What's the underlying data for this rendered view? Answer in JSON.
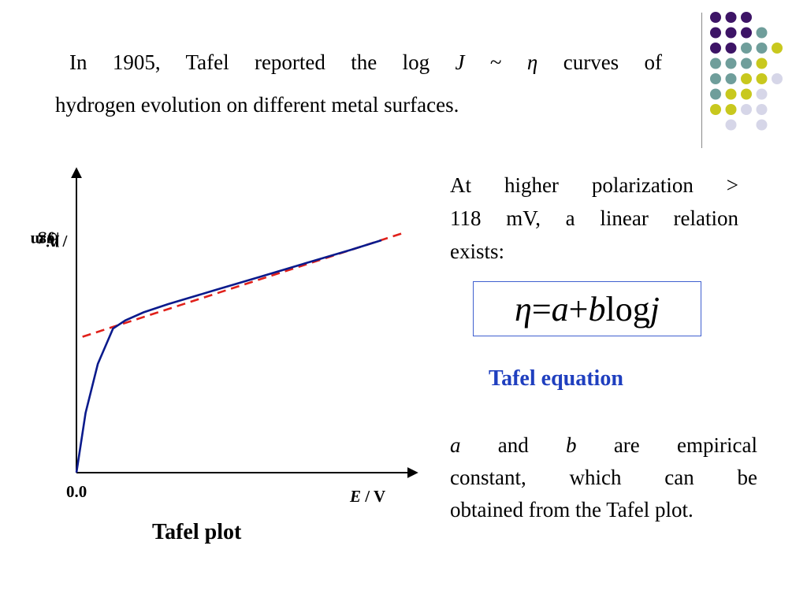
{
  "intro": {
    "line1_a": "In 1905, Tafel reported the log",
    "sym_J": "J",
    "sym_tilde": "~",
    "sym_eta": "η",
    "line1_b": "curves of",
    "line2": "hydrogen evolution on different metal surfaces."
  },
  "chart": {
    "ylabel_a": "log ",
    "ylabel_j": "j",
    "ylabel_b": " / A m",
    "ylabel_exp": "-2",
    "origin_label": "0.0",
    "xlabel_E": "E",
    "xlabel_rest": " / V",
    "caption": "Tafel plot",
    "curve_color": "#0a1a8c",
    "fit_color": "#e0201a"
  },
  "chart_data": {
    "type": "line",
    "title": "Tafel plot",
    "xlabel": "E / V",
    "ylabel": "log j / A m-2",
    "x_tick_labels": [
      "0.0"
    ],
    "grid": false,
    "series": [
      {
        "style": "solid",
        "color": "#0a1a8c",
        "x": [
          0.0,
          0.03,
          0.07,
          0.12,
          0.16,
          0.22,
          0.3,
          0.45,
          0.6,
          0.75,
          0.9,
          1.0
        ],
        "y": [
          0.0,
          0.22,
          0.4,
          0.53,
          0.56,
          0.59,
          0.62,
          0.67,
          0.72,
          0.77,
          0.82,
          0.855
        ]
      },
      {
        "style": "dashed",
        "color": "#e0201a",
        "x": [
          0.02,
          1.08
        ],
        "y": [
          0.5,
          0.885
        ]
      }
    ]
  },
  "right": {
    "p1_line1": "At higher polarization >",
    "p1_line2": "118 mV, a linear relation",
    "p1_line3": "exists:",
    "eq_eta": "η",
    "eq_mid": " = ",
    "eq_a": "a",
    "eq_plus": " + ",
    "eq_b": "b",
    "eq_log": "log ",
    "eq_j": "j",
    "eq_name": "Tafel equation",
    "p2_a": "a",
    "p2_and": "and",
    "p2_b": "b",
    "p2_rest1": "are empirical",
    "p2_line2": "constant, which can be",
    "p2_line3": "obtained from the Tafel plot."
  },
  "decor": {
    "colors": [
      "#3d1466",
      "#6f9e9b",
      "#c8c81e",
      "#d6d6e8"
    ]
  }
}
